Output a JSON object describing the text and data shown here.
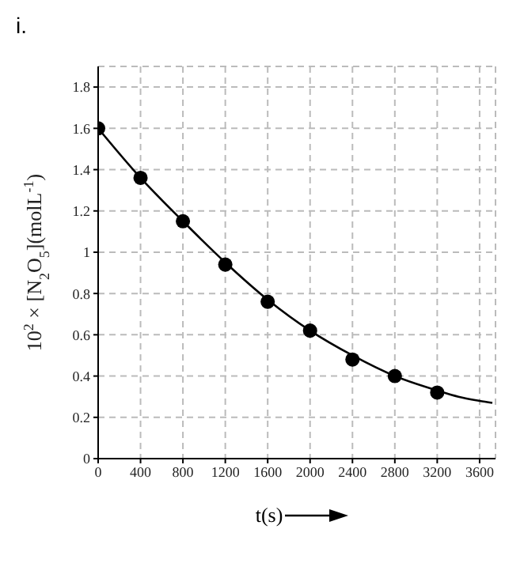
{
  "chart_data": {
    "type": "scatter",
    "title": "i.",
    "xlabel": "t(s)",
    "ylabel": "10$^{2}$ × [N$_{2}$O$_{5}$](molL$^{-1}$)",
    "xlim": [
      0,
      3750
    ],
    "ylim": [
      0,
      1.9
    ],
    "xticks": [
      0,
      400,
      800,
      1200,
      1600,
      2000,
      2400,
      2800,
      3200,
      3600
    ],
    "yticks": [
      0,
      0.2,
      0.4,
      0.6,
      0.8,
      1.0,
      1.2,
      1.4,
      1.6,
      1.8
    ],
    "grid": true,
    "series": [
      {
        "type": "scatter",
        "color": "#000000",
        "marker": "circle",
        "x": [
          0,
          400,
          800,
          1200,
          1600,
          2000,
          2400,
          2800,
          3200
        ],
        "values": [
          1.6,
          1.36,
          1.15,
          0.94,
          0.76,
          0.62,
          0.48,
          0.4,
          0.32
        ]
      },
      {
        "type": "line",
        "color": "#000000",
        "marker": "none",
        "line_style": "solid",
        "x": [
          0,
          400,
          800,
          1200,
          1600,
          2000,
          2400,
          2800,
          3200,
          3400,
          3600,
          3720
        ],
        "values": [
          1.6,
          1.36,
          1.15,
          0.95,
          0.77,
          0.62,
          0.5,
          0.4,
          0.33,
          0.3,
          0.28,
          0.27
        ]
      }
    ]
  }
}
